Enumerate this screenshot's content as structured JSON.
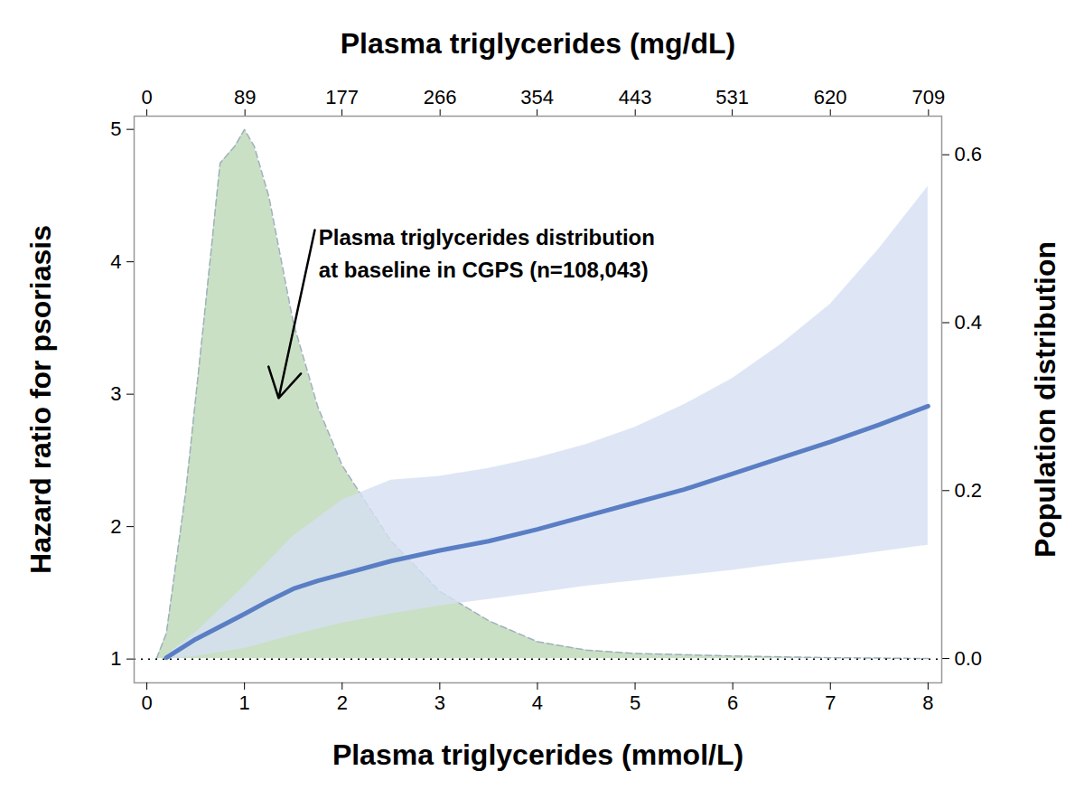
{
  "chart_data": {
    "type": "line",
    "x_label": "Plasma triglycerides (mmol/L)",
    "x2_label": "Plasma triglycerides (mg/dL)",
    "y_label": "Hazard ratio for psoriasis",
    "y2_label": "Population distribution",
    "xlim": [
      -0.13,
      8.14
    ],
    "xticks": [
      0,
      1,
      2,
      3,
      4,
      5,
      6,
      7,
      8
    ],
    "x2lim": [
      -11.5,
      721
    ],
    "x2ticks": [
      0,
      89,
      177,
      266,
      354,
      443,
      531,
      620,
      709
    ],
    "ylim": [
      0.82,
      5.1
    ],
    "yticks": [
      1,
      2,
      3,
      4,
      5
    ],
    "y2lim": [
      -0.029,
      0.646
    ],
    "y2ticks": [
      {
        "value": 0,
        "label": "0.0"
      },
      0.2,
      0.4,
      0.6
    ],
    "series": [
      {
        "type": "area",
        "axis": "y2",
        "color": "#c9e0c4",
        "line_style": "dashed",
        "x": [
          0.1,
          0.2,
          0.4,
          0.6,
          0.75,
          0.9,
          1.0,
          1.1,
          1.25,
          1.5,
          1.75,
          2.0,
          2.5,
          3.0,
          3.5,
          4.0,
          4.5,
          5.0,
          6.0,
          7.0,
          8.0
        ],
        "values": [
          0,
          0.03,
          0.2,
          0.42,
          0.59,
          0.61,
          0.63,
          0.61,
          0.55,
          0.4,
          0.3,
          0.23,
          0.14,
          0.08,
          0.045,
          0.02,
          0.01,
          0.006,
          0.003,
          0.001,
          0
        ]
      },
      {
        "type": "band",
        "color": "#d6e0f2",
        "x": [
          0.2,
          0.5,
          1.0,
          1.5,
          2.0,
          2.5,
          3.0,
          3.5,
          4.0,
          4.5,
          5.0,
          5.5,
          6.0,
          6.5,
          7.0,
          7.5,
          8.0
        ],
        "lower": [
          1.0,
          1.02,
          1.08,
          1.18,
          1.27,
          1.34,
          1.4,
          1.45,
          1.5,
          1.55,
          1.59,
          1.63,
          1.67,
          1.72,
          1.76,
          1.81,
          1.86
        ],
        "upper": [
          1.03,
          1.2,
          1.55,
          1.93,
          2.2,
          2.35,
          2.38,
          2.44,
          2.52,
          2.62,
          2.75,
          2.92,
          3.12,
          3.38,
          3.68,
          4.1,
          4.57
        ]
      },
      {
        "type": "rule",
        "color": "#000000",
        "line_style": "dotted",
        "values": [
          1
        ]
      },
      {
        "type": "line",
        "color": "#5a7ec4",
        "x": [
          0.2,
          0.5,
          1.0,
          1.25,
          1.5,
          1.75,
          2.0,
          2.5,
          3.0,
          3.5,
          4.0,
          4.5,
          5.0,
          5.5,
          6.0,
          6.5,
          7.0,
          7.5,
          8.0
        ],
        "values": [
          1.01,
          1.15,
          1.34,
          1.44,
          1.53,
          1.59,
          1.64,
          1.74,
          1.82,
          1.89,
          1.98,
          2.08,
          2.18,
          2.28,
          2.4,
          2.52,
          2.64,
          2.77,
          2.91
        ]
      }
    ],
    "annotations": [
      {
        "text": "Plasma triglycerides distribution\nat baseline in CGPS (n=108,043)",
        "x": 1.76,
        "y": 4.3,
        "arrow_from": [
          1.72,
          4.24
        ],
        "arrow_to": [
          1.35,
          2.97
        ]
      }
    ]
  }
}
